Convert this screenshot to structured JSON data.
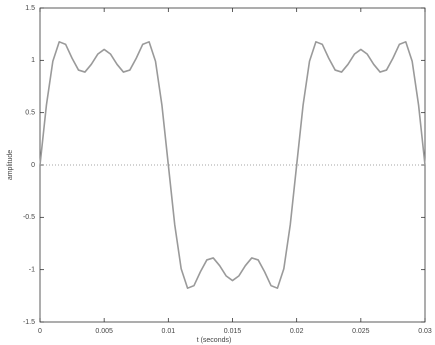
{
  "chart_data": {
    "type": "line",
    "xlabel": "t (seconds)",
    "ylabel": "amplitude",
    "x": [
      0,
      0.0005,
      0.001,
      0.0015,
      0.002,
      0.0025,
      0.003,
      0.0035,
      0.004,
      0.0045,
      0.005,
      0.0055,
      0.006,
      0.0065,
      0.007,
      0.0075,
      0.008,
      0.0085,
      0.009,
      0.0095,
      0.01,
      0.0105,
      0.011,
      0.0115,
      0.012,
      0.0125,
      0.013,
      0.0135,
      0.014,
      0.0145,
      0.015,
      0.0155,
      0.016,
      0.0165,
      0.017,
      0.0175,
      0.018,
      0.0185,
      0.019,
      0.0195,
      0.02,
      0.0205,
      0.021,
      0.0215,
      0.022,
      0.0225,
      0.023,
      0.0235,
      0.024,
      0.0245,
      0.025,
      0.0255,
      0.026,
      0.0265,
      0.027,
      0.0275,
      0.028,
      0.0285,
      0.029,
      0.0295,
      0.03
    ],
    "series": [
      {
        "color": "#9a9a9a",
        "values": [
          0,
          0.572,
          0.991,
          1.177,
          1.152,
          1.02,
          0.907,
          0.888,
          0.962,
          1.059,
          1.104,
          1.059,
          0.962,
          0.888,
          0.907,
          1.02,
          1.152,
          1.177,
          0.991,
          0.572,
          0,
          -0.572,
          -0.991,
          -1.177,
          -1.152,
          -1.02,
          -0.907,
          -0.888,
          -0.962,
          -1.059,
          -1.104,
          -1.059,
          -0.962,
          -0.888,
          -0.907,
          -1.02,
          -1.152,
          -1.177,
          -0.991,
          -0.572,
          0,
          0.572,
          0.991,
          1.177,
          1.152,
          1.02,
          0.907,
          0.888,
          0.962,
          1.059,
          1.104,
          1.059,
          0.962,
          0.888,
          0.907,
          1.02,
          1.152,
          1.177,
          0.991,
          0.572,
          0
        ]
      }
    ],
    "xlim": [
      0,
      0.03
    ],
    "xticks": [
      0,
      0.005,
      0.01,
      0.015,
      0.02,
      0.025,
      0.03
    ],
    "ylim": [
      -1.5,
      1.5
    ],
    "yticks": [
      -1.5,
      -1,
      -0.5,
      0,
      0.5,
      1,
      1.5
    ],
    "hlines": [
      0
    ],
    "grid": false
  }
}
